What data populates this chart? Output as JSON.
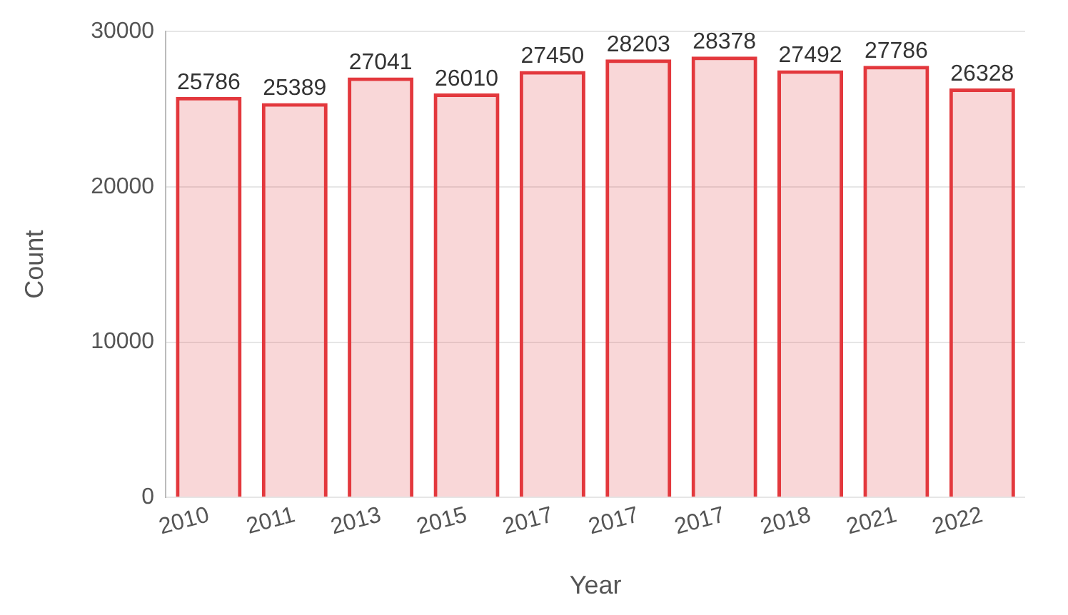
{
  "chart_data": {
    "type": "bar",
    "xlabel": "Year",
    "ylabel": "Count",
    "categories": [
      "2010",
      "2011",
      "2013",
      "2015",
      "2017",
      "2017",
      "2017",
      "2018",
      "2021",
      "2022"
    ],
    "values": [
      25786,
      25389,
      27041,
      26010,
      27450,
      28203,
      28378,
      27492,
      27786,
      26328
    ],
    "color": "#e3383d",
    "data_labels": true,
    "ylim": [
      0,
      30000
    ],
    "yticks": [
      0,
      10000,
      20000,
      30000
    ],
    "grid": "y",
    "legend": false
  }
}
